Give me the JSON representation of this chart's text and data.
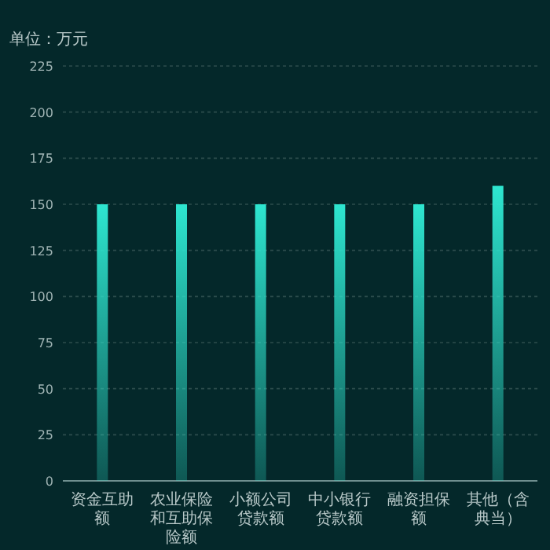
{
  "chart_data": {
    "type": "bar",
    "ylabel": "单位：万元",
    "categories": [
      "资金互助额",
      "农业保险和互助保险额",
      "小额公司贷款额",
      "中小银行贷款额",
      "融资担保额",
      "其他（含典当）"
    ],
    "values": [
      150,
      150,
      150,
      150,
      150,
      160
    ],
    "color": "#2ee6d0",
    "ylim": [
      0,
      225
    ],
    "yticks": [
      0,
      25,
      50,
      75,
      100,
      125,
      150,
      175,
      200,
      225
    ],
    "grid": "y"
  }
}
